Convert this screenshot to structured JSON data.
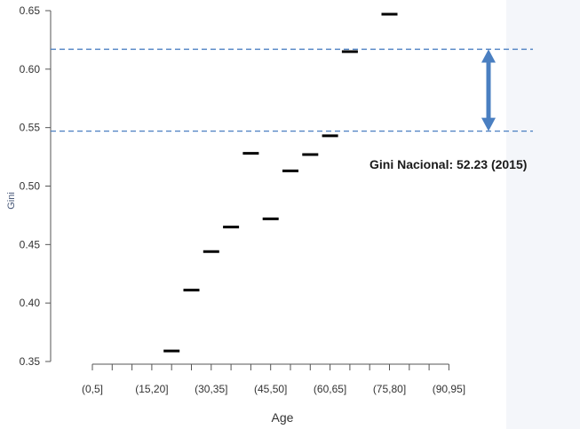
{
  "chart_data": {
    "type": "scatter",
    "title": "",
    "xlabel": "Age",
    "ylabel": "Gini",
    "ylim": [
      0.35,
      0.65
    ],
    "y_ticks": [
      "0.35",
      "0.40",
      "0.45",
      "0.50",
      "0.55",
      "0.60",
      "0.65"
    ],
    "x_tick_labels": [
      "(0,5]",
      "(15,20]",
      "(30,35]",
      "(45,50]",
      "(60,65]",
      "(75,80]",
      "(90,95]"
    ],
    "categories": [
      "(0,5]",
      "(5,10]",
      "(10,15]",
      "(15,20]",
      "(20,25]",
      "(25,30]",
      "(30,35]",
      "(35,40]",
      "(40,45]",
      "(45,50]",
      "(50,55]",
      "(55,60]",
      "(60,65]",
      "(65,70]",
      "(70,75]",
      "(75,80]",
      "(80,85]",
      "(85,90]",
      "(90,95]"
    ],
    "points": [
      {
        "x": "(20,25]",
        "y": 0.359
      },
      {
        "x": "(25,30]",
        "y": 0.411
      },
      {
        "x": "(30,35]",
        "y": 0.444
      },
      {
        "x": "(35,40]",
        "y": 0.465
      },
      {
        "x": "(40,45]",
        "y": 0.528
      },
      {
        "x": "(45,50]",
        "y": 0.472
      },
      {
        "x": "(50,55]",
        "y": 0.513
      },
      {
        "x": "(55,60]",
        "y": 0.527
      },
      {
        "x": "(60,65]",
        "y": 0.543
      },
      {
        "x": "(65,70]",
        "y": 0.615
      },
      {
        "x": "(75,80]",
        "y": 0.647
      }
    ],
    "reference_lines": [
      0.617,
      0.547
    ],
    "annotation": "Gini Nacional: 52.23 (2015)",
    "colors": {
      "marks": "#000000",
      "reference_line": "#4a7fc1",
      "arrow": "#4a7fc1",
      "axis": "#555555"
    },
    "grid": false
  }
}
